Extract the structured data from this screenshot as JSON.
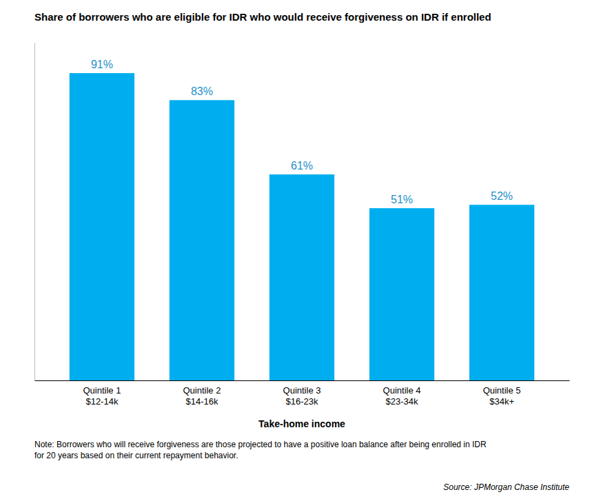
{
  "chart_data": {
    "type": "bar",
    "title": "Share of borrowers who are eligible for IDR who would receive forgiveness on IDR if enrolled",
    "categories": [
      "Quintile 1\n$12-14k",
      "Quintile 2\n$14-16k",
      "Quintile 3\n$16-23k",
      "Quintile 4\n$23-34k",
      "Quintile 5\n$34k+"
    ],
    "values": [
      91,
      83,
      61,
      51,
      52
    ],
    "value_labels": [
      "91%",
      "83%",
      "61%",
      "51%",
      "52%"
    ],
    "data_labels": true,
    "color": "#00AEEF",
    "x_label": "Take-home income",
    "ylim": [
      0,
      100
    ],
    "grid": false,
    "tick_labels": "x",
    "note": "Note: Borrowers who will receive forgiveness are those projected to have a positive loan balance after being enrolled in IDR\nfor 20 years based on their current repayment behavior.",
    "source": "Source: JPMorgan Chase Institute"
  }
}
